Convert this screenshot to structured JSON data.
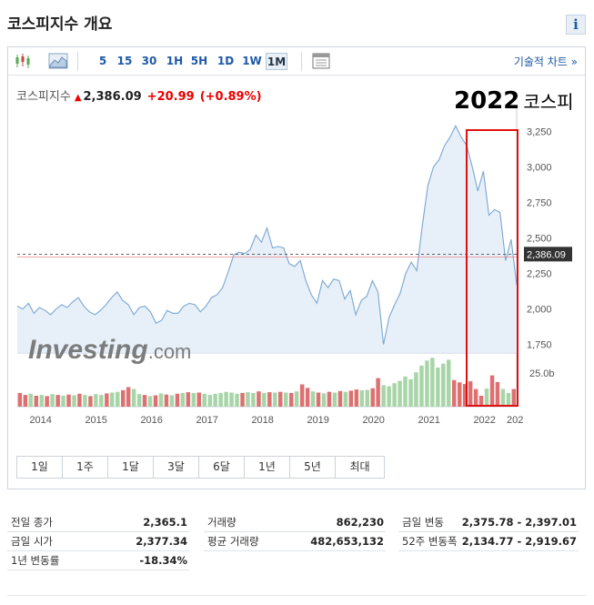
{
  "page": {
    "title": "코스피지수 개요",
    "info_label": "i"
  },
  "toolbar": {
    "timeframes": [
      "5",
      "15",
      "30",
      "1H",
      "5H",
      "1D",
      "1W",
      "1M"
    ],
    "active_timeframe": "1M",
    "technical_chart_label": "기술적 차트 »"
  },
  "quote": {
    "name": "코스피지수",
    "price": "2,386.09",
    "change": "+20.99",
    "change_pct": "(+0.89%)",
    "direction_icon": "up-arrow-icon"
  },
  "annotation": {
    "year": "2022",
    "label": "코스피",
    "box_color": "#e01010"
  },
  "watermark": {
    "brand": "Investing",
    "suffix": ".com"
  },
  "colors": {
    "line": "#7aa6d2",
    "area": "#e3edf7",
    "vol_up": "#a8d5a8",
    "vol_down": "#dd7070",
    "price_tag": "#333333"
  },
  "chart_data": {
    "type": "area",
    "x_ticks": [
      "2014",
      "2015",
      "2016",
      "2017",
      "2018",
      "2019",
      "2020",
      "2021",
      "2022",
      "202"
    ],
    "y_ticks": [
      "3,250",
      "3,000",
      "2,750",
      "2,500",
      "2,250",
      "2,000",
      "1,750"
    ],
    "ylim": [
      1690,
      3330
    ],
    "current_price_label": "2,386.09",
    "volume_label": "25.0b",
    "x_start": 2013.55,
    "x_end": 2022.55,
    "series": [
      {
        "values": [
          [
            2013.55,
            2020
          ],
          [
            2013.65,
            2000
          ],
          [
            2013.75,
            2040
          ],
          [
            2013.85,
            1970
          ],
          [
            2013.95,
            2010
          ],
          [
            2014.05,
            1990
          ],
          [
            2014.15,
            1960
          ],
          [
            2014.25,
            2000
          ],
          [
            2014.35,
            2030
          ],
          [
            2014.45,
            2010
          ],
          [
            2014.55,
            2050
          ],
          [
            2014.65,
            2080
          ],
          [
            2014.75,
            2020
          ],
          [
            2014.85,
            1980
          ],
          [
            2014.95,
            1960
          ],
          [
            2015.05,
            1990
          ],
          [
            2015.15,
            2030
          ],
          [
            2015.25,
            2080
          ],
          [
            2015.35,
            2120
          ],
          [
            2015.45,
            2060
          ],
          [
            2015.55,
            2030
          ],
          [
            2015.65,
            1960
          ],
          [
            2015.75,
            2010
          ],
          [
            2015.85,
            2020
          ],
          [
            2015.95,
            1980
          ],
          [
            2016.05,
            1900
          ],
          [
            2016.15,
            1920
          ],
          [
            2016.25,
            1990
          ],
          [
            2016.35,
            1970
          ],
          [
            2016.45,
            1970
          ],
          [
            2016.55,
            2020
          ],
          [
            2016.65,
            2040
          ],
          [
            2016.75,
            2030
          ],
          [
            2016.85,
            1980
          ],
          [
            2016.95,
            2020
          ],
          [
            2017.05,
            2080
          ],
          [
            2017.15,
            2100
          ],
          [
            2017.25,
            2150
          ],
          [
            2017.35,
            2260
          ],
          [
            2017.45,
            2380
          ],
          [
            2017.55,
            2400
          ],
          [
            2017.65,
            2390
          ],
          [
            2017.75,
            2420
          ],
          [
            2017.85,
            2520
          ],
          [
            2017.95,
            2470
          ],
          [
            2018.05,
            2570
          ],
          [
            2018.15,
            2430
          ],
          [
            2018.25,
            2440
          ],
          [
            2018.35,
            2430
          ],
          [
            2018.45,
            2320
          ],
          [
            2018.55,
            2300
          ],
          [
            2018.65,
            2340
          ],
          [
            2018.75,
            2200
          ],
          [
            2018.85,
            2100
          ],
          [
            2018.95,
            2040
          ],
          [
            2019.05,
            2200
          ],
          [
            2019.15,
            2150
          ],
          [
            2019.25,
            2210
          ],
          [
            2019.35,
            2200
          ],
          [
            2019.45,
            2070
          ],
          [
            2019.55,
            2130
          ],
          [
            2019.65,
            1960
          ],
          [
            2019.75,
            2060
          ],
          [
            2019.85,
            2090
          ],
          [
            2019.95,
            2200
          ],
          [
            2020.05,
            2120
          ],
          [
            2020.15,
            1750
          ],
          [
            2020.25,
            1940
          ],
          [
            2020.35,
            2030
          ],
          [
            2020.45,
            2110
          ],
          [
            2020.55,
            2250
          ],
          [
            2020.65,
            2330
          ],
          [
            2020.75,
            2270
          ],
          [
            2020.85,
            2590
          ],
          [
            2020.95,
            2870
          ],
          [
            2021.05,
            3000
          ],
          [
            2021.15,
            3050
          ],
          [
            2021.25,
            3150
          ],
          [
            2021.35,
            3210
          ],
          [
            2021.45,
            3290
          ],
          [
            2021.55,
            3210
          ],
          [
            2021.65,
            3150
          ],
          [
            2021.75,
            3000
          ],
          [
            2021.85,
            2830
          ],
          [
            2021.95,
            2970
          ],
          [
            2022.05,
            2660
          ],
          [
            2022.15,
            2700
          ],
          [
            2022.25,
            2680
          ],
          [
            2022.35,
            2340
          ],
          [
            2022.45,
            2490
          ],
          [
            2022.55,
            2170
          ]
        ]
      }
    ],
    "volume": [
      {
        "v": 0.35,
        "up": false
      },
      {
        "v": 0.3,
        "up": false
      },
      {
        "v": 0.33,
        "up": true
      },
      {
        "v": 0.28,
        "up": false
      },
      {
        "v": 0.3,
        "up": true
      },
      {
        "v": 0.27,
        "up": false
      },
      {
        "v": 0.32,
        "up": true
      },
      {
        "v": 0.3,
        "up": false
      },
      {
        "v": 0.28,
        "up": true
      },
      {
        "v": 0.31,
        "up": false
      },
      {
        "v": 0.29,
        "up": true
      },
      {
        "v": 0.33,
        "up": false
      },
      {
        "v": 0.3,
        "up": true
      },
      {
        "v": 0.27,
        "up": false
      },
      {
        "v": 0.32,
        "up": true
      },
      {
        "v": 0.3,
        "up": true
      },
      {
        "v": 0.34,
        "up": false
      },
      {
        "v": 0.36,
        "up": true
      },
      {
        "v": 0.38,
        "up": true
      },
      {
        "v": 0.42,
        "up": false
      },
      {
        "v": 0.5,
        "up": false
      },
      {
        "v": 0.45,
        "up": true
      },
      {
        "v": 0.32,
        "up": true
      },
      {
        "v": 0.3,
        "up": false
      },
      {
        "v": 0.27,
        "up": true
      },
      {
        "v": 0.29,
        "up": false
      },
      {
        "v": 0.34,
        "up": true
      },
      {
        "v": 0.31,
        "up": false
      },
      {
        "v": 0.29,
        "up": true
      },
      {
        "v": 0.33,
        "up": false
      },
      {
        "v": 0.35,
        "up": true
      },
      {
        "v": 0.37,
        "up": false
      },
      {
        "v": 0.35,
        "up": true
      },
      {
        "v": 0.36,
        "up": false
      },
      {
        "v": 0.33,
        "up": true
      },
      {
        "v": 0.3,
        "up": true
      },
      {
        "v": 0.33,
        "up": true
      },
      {
        "v": 0.35,
        "up": true
      },
      {
        "v": 0.38,
        "up": true
      },
      {
        "v": 0.36,
        "up": true
      },
      {
        "v": 0.33,
        "up": true
      },
      {
        "v": 0.35,
        "up": false
      },
      {
        "v": 0.37,
        "up": true
      },
      {
        "v": 0.35,
        "up": true
      },
      {
        "v": 0.39,
        "up": false
      },
      {
        "v": 0.35,
        "up": true
      },
      {
        "v": 0.37,
        "up": false
      },
      {
        "v": 0.36,
        "up": true
      },
      {
        "v": 0.38,
        "up": false
      },
      {
        "v": 0.36,
        "up": true
      },
      {
        "v": 0.35,
        "up": false
      },
      {
        "v": 0.39,
        "up": true
      },
      {
        "v": 0.57,
        "up": false
      },
      {
        "v": 0.48,
        "up": false
      },
      {
        "v": 0.39,
        "up": true
      },
      {
        "v": 0.36,
        "up": false
      },
      {
        "v": 0.34,
        "up": true
      },
      {
        "v": 0.38,
        "up": false
      },
      {
        "v": 0.36,
        "up": true
      },
      {
        "v": 0.4,
        "up": false
      },
      {
        "v": 0.38,
        "up": true
      },
      {
        "v": 0.41,
        "up": false
      },
      {
        "v": 0.44,
        "up": false
      },
      {
        "v": 0.42,
        "up": true
      },
      {
        "v": 0.43,
        "up": true
      },
      {
        "v": 0.47,
        "up": false
      },
      {
        "v": 0.73,
        "up": false
      },
      {
        "v": 0.55,
        "up": true
      },
      {
        "v": 0.52,
        "up": true
      },
      {
        "v": 0.6,
        "up": true
      },
      {
        "v": 0.66,
        "up": true
      },
      {
        "v": 0.77,
        "up": true
      },
      {
        "v": 0.7,
        "up": true
      },
      {
        "v": 0.88,
        "up": true
      },
      {
        "v": 1.05,
        "up": true
      },
      {
        "v": 1.18,
        "up": true
      },
      {
        "v": 1.25,
        "up": true
      },
      {
        "v": 1.0,
        "up": true
      },
      {
        "v": 1.1,
        "up": true
      },
      {
        "v": 1.2,
        "up": true
      },
      {
        "v": 0.68,
        "up": false
      },
      {
        "v": 0.62,
        "up": false
      },
      {
        "v": 0.58,
        "up": false
      },
      {
        "v": 0.65,
        "up": false
      },
      {
        "v": 0.45,
        "up": false
      },
      {
        "v": 0.28,
        "up": false
      },
      {
        "v": 0.46,
        "up": true
      },
      {
        "v": 0.8,
        "up": false
      },
      {
        "v": 0.63,
        "up": false
      },
      {
        "v": 0.45,
        "up": true
      },
      {
        "v": 0.35,
        "up": true
      },
      {
        "v": 0.45,
        "up": false
      }
    ]
  },
  "ranges": [
    "1일",
    "1주",
    "1달",
    "3달",
    "6달",
    "1년",
    "5년",
    "최대"
  ],
  "stats": {
    "prev_close": {
      "label": "전일 종가",
      "value": "2,365.1"
    },
    "today_open": {
      "label": "금일 시가",
      "value": "2,377.34"
    },
    "one_year_change": {
      "label": "1년 변동률",
      "value": "-18.34%"
    },
    "volume": {
      "label": "거래량",
      "value": "862,230"
    },
    "avg_volume": {
      "label": "평균 거래량",
      "value": "482,653,132"
    },
    "day_range": {
      "label": "금일 변동",
      "value": "2,375.78 - 2,397.01"
    },
    "week52_range": {
      "label": "52주 변동폭",
      "value": "2,134.77 - 2,919.67"
    }
  }
}
